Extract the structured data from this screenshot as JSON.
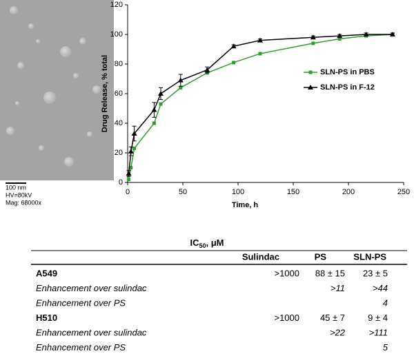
{
  "image": {
    "captions": [
      "100 nm",
      "HV=80kV",
      "Mag: 68000x"
    ]
  },
  "chart_data": {
    "type": "line",
    "x_label": "Time, h",
    "y_label": "Drug Release, % total",
    "x": [
      1,
      3,
      6,
      24,
      30,
      48,
      72,
      96,
      120,
      168,
      192,
      216,
      240
    ],
    "series": [
      {
        "name": "SLN-PS in PBS",
        "color": "#2ca02c",
        "marker": "square",
        "values": [
          2,
          10,
          23,
          40,
          53,
          64,
          74,
          81,
          87,
          94,
          97,
          99,
          100
        ]
      },
      {
        "name": "SLN-PS in F-12",
        "color": "#000000",
        "marker": "triangle",
        "values": [
          6,
          21,
          33,
          49,
          60,
          69,
          76,
          92,
          96,
          98,
          99,
          100,
          100
        ],
        "errors": [
          2,
          3,
          5,
          5,
          4,
          4,
          2,
          1,
          1,
          1,
          1,
          1,
          1
        ]
      }
    ],
    "xlim": [
      0,
      250
    ],
    "xticks": [
      0,
      50,
      100,
      150,
      200,
      250
    ],
    "ylim": [
      0,
      120
    ],
    "yticks": [
      0,
      20,
      40,
      60,
      80,
      100,
      120
    ],
    "grid": false,
    "legend": "right"
  },
  "table": {
    "title": "IC",
    "title_sub": "50",
    "title_unit": ", μM",
    "header": [
      "Sulindac",
      "PS",
      "SLN-PS"
    ],
    "rows": [
      [
        "A549",
        ">1000",
        "88 ± 15",
        "23 ± 5"
      ],
      [
        "Enhancement over sulindac",
        null,
        ">11",
        ">44"
      ],
      [
        "Enhancement over PS",
        null,
        null,
        "4"
      ],
      [
        "H510",
        ">1000",
        "45 ± 7",
        "9 ± 4"
      ],
      [
        "Enhancement over sulindac",
        null,
        ">22",
        ">111"
      ],
      [
        "Enhancement over PS",
        null,
        null,
        "5"
      ]
    ]
  }
}
